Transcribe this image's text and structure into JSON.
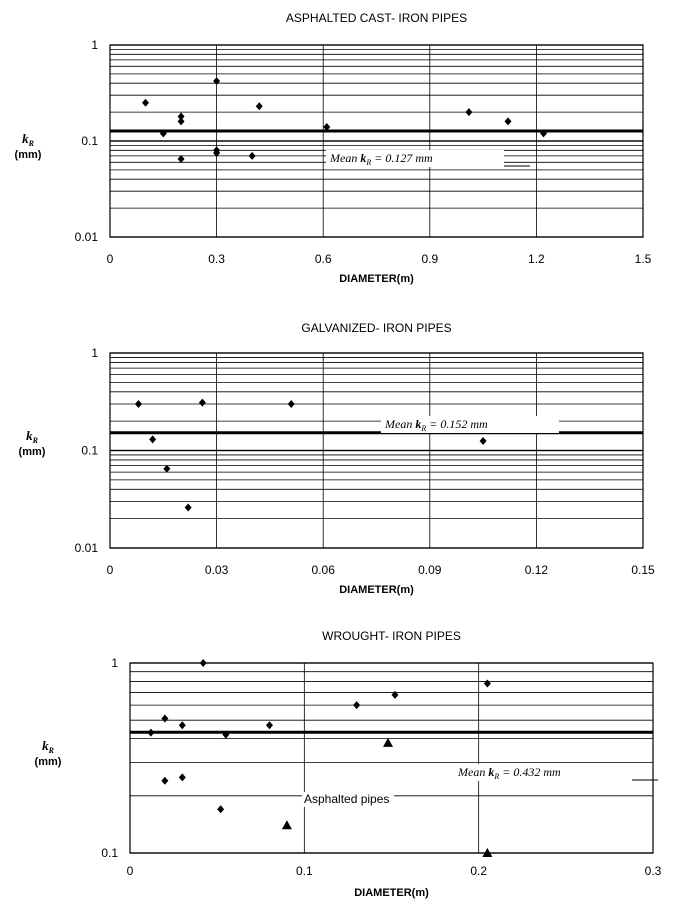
{
  "chart_data": [
    {
      "type": "scatter",
      "title": "ASPHALTED CAST- IRON PIPES",
      "xlabel": "DIAMETER(m)",
      "ylabel": "k",
      "ylabel_sub": "R",
      "ylabel_unit": "(mm)",
      "xlim": [
        0,
        1.5
      ],
      "ylim": [
        0.01,
        1
      ],
      "yscale": "log",
      "xticks": [
        "0",
        "0.3",
        "0.6",
        "0.9",
        "1.2",
        "1.5"
      ],
      "xtick_values": [
        0,
        0.3,
        0.6,
        0.9,
        1.2,
        1.5
      ],
      "yticks": [
        "1",
        "0.1",
        "0.01"
      ],
      "ytick_values": [
        1,
        0.1,
        0.01
      ],
      "grid": "horizontal",
      "mean": {
        "value": 0.127,
        "prefix": "Mean",
        "k": "k",
        "sub": "R",
        "suffix": "= 0.127 mm"
      },
      "series": [
        {
          "marker": "diamond",
          "x": [
            0.1,
            0.15,
            0.2,
            0.2,
            0.2,
            0.3,
            0.3,
            0.3,
            0.4,
            0.42,
            0.61,
            1.01,
            1.12,
            1.22
          ],
          "y": [
            0.25,
            0.12,
            0.18,
            0.16,
            0.065,
            0.42,
            0.08,
            0.075,
            0.07,
            0.23,
            0.14,
            0.2,
            0.16,
            0.12
          ]
        }
      ]
    },
    {
      "type": "scatter",
      "title": "GALVANIZED- IRON PIPES",
      "xlabel": "DIAMETER(m)",
      "ylabel": "k",
      "ylabel_sub": "R",
      "ylabel_unit": "(mm)",
      "xlim": [
        0,
        0.15
      ],
      "ylim": [
        0.01,
        1
      ],
      "yscale": "log",
      "xticks": [
        "0",
        "0.03",
        "0.06",
        "0.09",
        "0.12",
        "0.15"
      ],
      "xtick_values": [
        0,
        0.03,
        0.06,
        0.09,
        0.12,
        0.15
      ],
      "yticks": [
        "1",
        "0.1",
        "0.01"
      ],
      "ytick_values": [
        1,
        0.1,
        0.01
      ],
      "grid": "horizontal",
      "mean": {
        "value": 0.152,
        "prefix": "Mean",
        "k": "k",
        "sub": "R",
        "suffix": "= 0.152 mm"
      },
      "series": [
        {
          "marker": "diamond",
          "x": [
            0.008,
            0.012,
            0.016,
            0.022,
            0.026,
            0.051,
            0.105
          ],
          "y": [
            0.3,
            0.13,
            0.065,
            0.026,
            0.31,
            0.3,
            0.125
          ]
        }
      ]
    },
    {
      "type": "scatter",
      "title": "WROUGHT- IRON PIPES",
      "xlabel": "DIAMETER(m)",
      "ylabel": "k",
      "ylabel_sub": "R",
      "ylabel_unit": "(mm)",
      "xlim": [
        0,
        0.3
      ],
      "ylim": [
        0.1,
        1
      ],
      "yscale": "log",
      "xticks": [
        "0",
        "0.1",
        "0.2",
        "0.3"
      ],
      "xtick_values": [
        0,
        0.1,
        0.2,
        0.3
      ],
      "yticks": [
        "1",
        "0.1"
      ],
      "ytick_values": [
        1,
        0.1
      ],
      "grid": "horizontal",
      "mean": {
        "value": 0.432,
        "prefix": "Mean",
        "k": "k",
        "sub": "R",
        "suffix": "= 0.432 mm"
      },
      "annotation": "Asphalted pipes",
      "series": [
        {
          "marker": "diamond",
          "x": [
            0.012,
            0.02,
            0.02,
            0.03,
            0.03,
            0.042,
            0.052,
            0.055,
            0.08,
            0.13,
            0.152,
            0.205
          ],
          "y": [
            0.43,
            0.51,
            0.24,
            0.47,
            0.25,
            1.0,
            0.17,
            0.42,
            0.47,
            0.6,
            0.68,
            0.78
          ]
        },
        {
          "name": "Asphalted pipes",
          "marker": "triangle",
          "x": [
            0.09,
            0.148,
            0.205
          ],
          "y": [
            0.14,
            0.38,
            0.1
          ]
        }
      ]
    }
  ]
}
